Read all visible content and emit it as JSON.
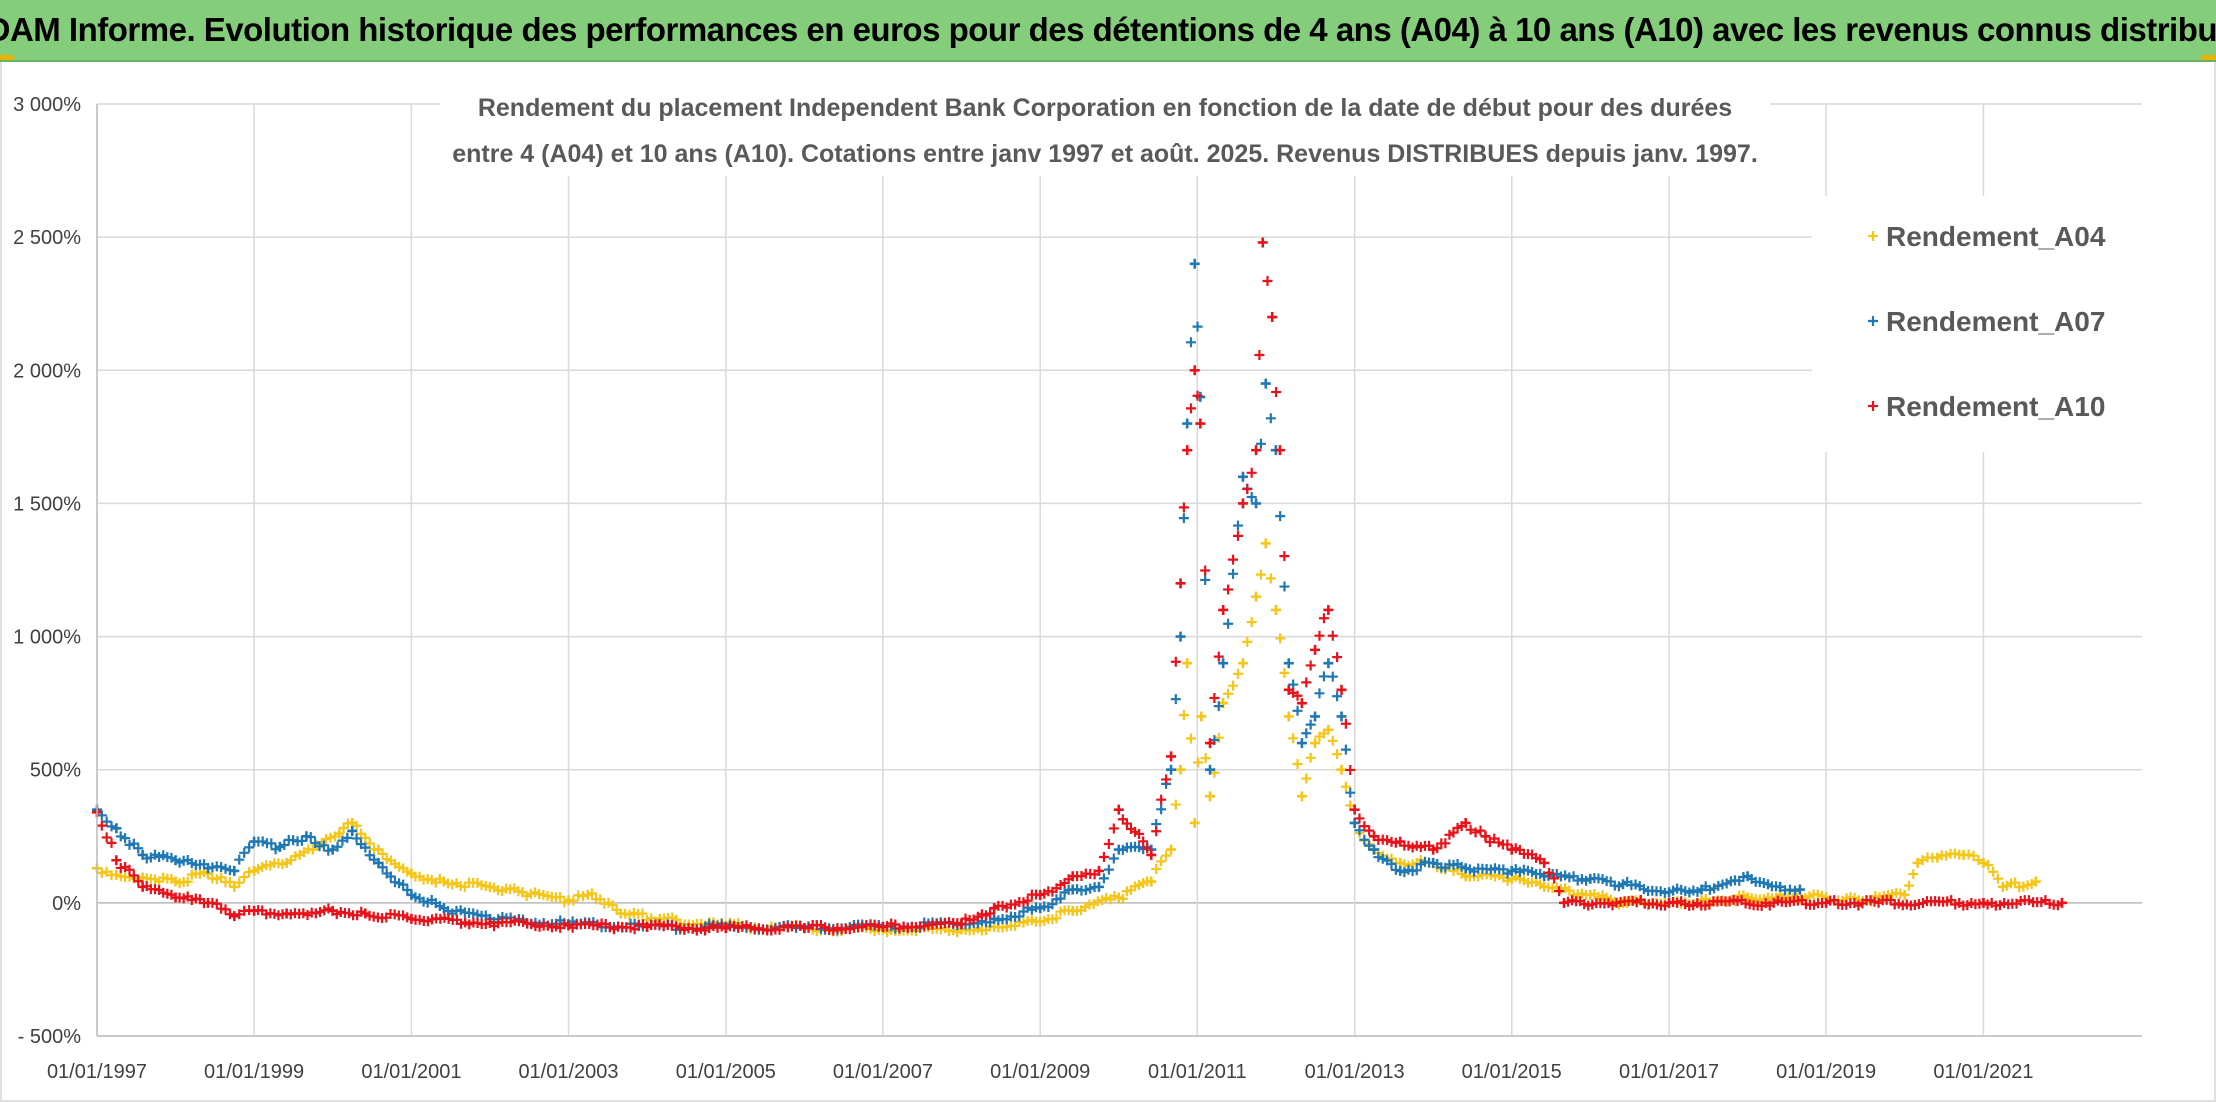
{
  "banner": {
    "title": "ADAM Informe. Evolution historique des performances en euros pour des détentions de 4 ans (A04) à 10 ans (A10) avec les revenus connus distribués"
  },
  "chart_data": {
    "type": "scatter",
    "title_lines": [
      "Rendement du placement Independent Bank Corporation en fonction de la date de début pour des durées",
      "entre 4 (A04) et 10 ans (A10). Cotations entre janv 1997 et août. 2025. Revenus DISTRIBUES depuis janv. 1997."
    ],
    "xlabel": "",
    "ylabel": "",
    "x_unit": "date",
    "xlim": [
      "1997-01-01",
      "2022-01-01"
    ],
    "ylim": [
      -500,
      3000
    ],
    "y_ticks": [
      -500,
      0,
      500,
      1000,
      1500,
      2000,
      2500,
      3000
    ],
    "y_tick_labels": [
      "- 500%",
      "0%",
      "500%",
      "1 000%",
      "1 500%",
      "2 000%",
      "2 500%",
      "3 000%"
    ],
    "x_tick_labels": [
      "01/01/1997",
      "01/01/1999",
      "01/01/2001",
      "01/01/2003",
      "01/01/2005",
      "01/01/2007",
      "01/01/2009",
      "01/01/2011",
      "01/01/2013",
      "01/01/2015",
      "01/01/2017",
      "01/01/2019",
      "01/01/2021"
    ],
    "x_tick_dates": [
      "1997-01-01",
      "1999-01-01",
      "2001-01-01",
      "2003-01-01",
      "2005-01-01",
      "2007-01-01",
      "2009-01-01",
      "2011-01-01",
      "2013-01-01",
      "2015-01-01",
      "2017-01-01",
      "2019-01-01",
      "2021-01-01"
    ],
    "grid": true,
    "legend_position": "top-right",
    "marker": "+",
    "series": [
      {
        "name": "Rendement_A04",
        "color": "#f5c518",
        "points": [
          [
            "1997-01-01",
            130
          ],
          [
            "1997-04-01",
            105
          ],
          [
            "1997-08-01",
            95
          ],
          [
            "1998-01-01",
            80
          ],
          [
            "1998-06-01",
            110
          ],
          [
            "1998-10-01",
            60
          ],
          [
            "1999-01-01",
            120
          ],
          [
            "1999-06-01",
            150
          ],
          [
            "1999-10-01",
            200
          ],
          [
            "2000-02-01",
            260
          ],
          [
            "2000-04-01",
            300
          ],
          [
            "2000-08-01",
            200
          ],
          [
            "2001-01-01",
            110
          ],
          [
            "2001-06-01",
            80
          ],
          [
            "2002-01-01",
            60
          ],
          [
            "2002-06-01",
            40
          ],
          [
            "2003-01-01",
            10
          ],
          [
            "2003-04-01",
            30
          ],
          [
            "2003-09-01",
            -40
          ],
          [
            "2004-03-01",
            -60
          ],
          [
            "2005-01-01",
            -85
          ],
          [
            "2006-01-01",
            -95
          ],
          [
            "2007-01-01",
            -100
          ],
          [
            "2008-01-01",
            -100
          ],
          [
            "2008-06-01",
            -90
          ],
          [
            "2009-01-01",
            -70
          ],
          [
            "2009-06-01",
            -30
          ],
          [
            "2010-01-01",
            20
          ],
          [
            "2010-06-01",
            80
          ],
          [
            "2010-09-01",
            200
          ],
          [
            "2010-10-15",
            500
          ],
          [
            "2010-11-15",
            900
          ],
          [
            "2010-12-20",
            300
          ],
          [
            "2011-01-20",
            700
          ],
          [
            "2011-03-01",
            400
          ],
          [
            "2011-05-01",
            750
          ],
          [
            "2011-08-01",
            900
          ],
          [
            "2011-10-01",
            1150
          ],
          [
            "2011-11-15",
            1350
          ],
          [
            "2012-01-01",
            1100
          ],
          [
            "2012-03-01",
            700
          ],
          [
            "2012-05-01",
            400
          ],
          [
            "2012-07-01",
            600
          ],
          [
            "2012-09-01",
            650
          ],
          [
            "2012-11-01",
            500
          ],
          [
            "2013-01-01",
            300
          ],
          [
            "2013-04-01",
            200
          ],
          [
            "2013-08-01",
            150
          ],
          [
            "2014-01-01",
            150
          ],
          [
            "2014-06-01",
            100
          ],
          [
            "2015-01-01",
            90
          ],
          [
            "2015-06-01",
            60
          ],
          [
            "2016-01-01",
            30
          ],
          [
            "2016-06-01",
            0
          ],
          [
            "2017-01-01",
            0
          ],
          [
            "2017-06-01",
            10
          ],
          [
            "2018-01-01",
            20
          ],
          [
            "2018-06-01",
            30
          ],
          [
            "2019-01-01",
            20
          ],
          [
            "2019-06-01",
            10
          ],
          [
            "2020-01-01",
            30
          ],
          [
            "2020-03-01",
            150
          ],
          [
            "2020-06-01",
            170
          ],
          [
            "2020-10-01",
            180
          ],
          [
            "2021-01-01",
            150
          ],
          [
            "2021-04-01",
            60
          ],
          [
            "2021-09-01",
            80
          ]
        ]
      },
      {
        "name": "Rendement_A07",
        "color": "#1f78b4",
        "points": [
          [
            "1997-01-01",
            350
          ],
          [
            "1997-04-01",
            280
          ],
          [
            "1997-08-01",
            180
          ],
          [
            "1998-01-01",
            160
          ],
          [
            "1998-06-01",
            130
          ],
          [
            "1998-10-01",
            120
          ],
          [
            "1999-01-01",
            230
          ],
          [
            "1999-05-01",
            210
          ],
          [
            "1999-09-01",
            250
          ],
          [
            "2000-01-01",
            200
          ],
          [
            "2000-04-01",
            270
          ],
          [
            "2000-08-01",
            150
          ],
          [
            "2001-01-01",
            30
          ],
          [
            "2001-06-01",
            -20
          ],
          [
            "2002-01-01",
            -60
          ],
          [
            "2003-01-01",
            -80
          ],
          [
            "2004-01-01",
            -90
          ],
          [
            "2005-01-01",
            -90
          ],
          [
            "2006-01-01",
            -95
          ],
          [
            "2007-01-01",
            -90
          ],
          [
            "2008-01-01",
            -80
          ],
          [
            "2008-06-01",
            -60
          ],
          [
            "2009-01-01",
            -20
          ],
          [
            "2009-06-01",
            50
          ],
          [
            "2009-10-01",
            60
          ],
          [
            "2010-01-01",
            200
          ],
          [
            "2010-06-01",
            200
          ],
          [
            "2010-09-01",
            500
          ],
          [
            "2010-10-15",
            1000
          ],
          [
            "2010-11-15",
            1800
          ],
          [
            "2010-12-20",
            2400
          ],
          [
            "2011-01-15",
            1900
          ],
          [
            "2011-03-01",
            500
          ],
          [
            "2011-05-01",
            900
          ],
          [
            "2011-08-01",
            1600
          ],
          [
            "2011-10-01",
            1500
          ],
          [
            "2011-11-15",
            1950
          ],
          [
            "2012-01-01",
            1700
          ],
          [
            "2012-03-01",
            900
          ],
          [
            "2012-05-01",
            600
          ],
          [
            "2012-07-01",
            700
          ],
          [
            "2012-09-01",
            900
          ],
          [
            "2012-11-01",
            700
          ],
          [
            "2013-01-01",
            300
          ],
          [
            "2013-04-01",
            200
          ],
          [
            "2013-08-01",
            120
          ],
          [
            "2014-01-01",
            150
          ],
          [
            "2014-06-01",
            130
          ],
          [
            "2015-01-01",
            120
          ],
          [
            "2015-06-01",
            100
          ],
          [
            "2016-01-01",
            90
          ],
          [
            "2016-06-01",
            70
          ],
          [
            "2017-01-01",
            40
          ],
          [
            "2017-06-01",
            50
          ],
          [
            "2018-01-01",
            100
          ],
          [
            "2018-06-01",
            60
          ],
          [
            "2018-09-01",
            50
          ]
        ]
      },
      {
        "name": "Rendement_A10",
        "color": "#e8121a",
        "points": [
          [
            "1997-01-01",
            340
          ],
          [
            "1997-04-01",
            160
          ],
          [
            "1997-08-01",
            60
          ],
          [
            "1998-01-01",
            20
          ],
          [
            "1998-06-01",
            0
          ],
          [
            "1998-10-01",
            -50
          ],
          [
            "1999-01-01",
            -30
          ],
          [
            "1999-06-01",
            -40
          ],
          [
            "2000-01-01",
            -30
          ],
          [
            "2000-06-01",
            -40
          ],
          [
            "2001-01-01",
            -60
          ],
          [
            "2002-01-01",
            -75
          ],
          [
            "2003-01-01",
            -85
          ],
          [
            "2004-01-01",
            -90
          ],
          [
            "2005-01-01",
            -95
          ],
          [
            "2006-01-01",
            -95
          ],
          [
            "2007-01-01",
            -90
          ],
          [
            "2008-01-01",
            -80
          ],
          [
            "2008-06-01",
            -20
          ],
          [
            "2009-01-01",
            30
          ],
          [
            "2009-06-01",
            100
          ],
          [
            "2009-10-01",
            120
          ],
          [
            "2010-01-01",
            350
          ],
          [
            "2010-06-01",
            180
          ],
          [
            "2010-09-01",
            550
          ],
          [
            "2010-10-15",
            1200
          ],
          [
            "2010-11-15",
            1700
          ],
          [
            "2010-12-20",
            2000
          ],
          [
            "2011-01-15",
            1800
          ],
          [
            "2011-03-01",
            600
          ],
          [
            "2011-05-01",
            1100
          ],
          [
            "2011-08-01",
            1500
          ],
          [
            "2011-10-01",
            1700
          ],
          [
            "2011-11-01",
            2480
          ],
          [
            "2011-12-15",
            2200
          ],
          [
            "2012-01-20",
            1700
          ],
          [
            "2012-03-01",
            800
          ],
          [
            "2012-05-01",
            750
          ],
          [
            "2012-07-01",
            950
          ],
          [
            "2012-09-01",
            1100
          ],
          [
            "2012-11-01",
            800
          ],
          [
            "2013-01-01",
            350
          ],
          [
            "2013-04-01",
            250
          ],
          [
            "2013-08-01",
            230
          ],
          [
            "2014-01-01",
            200
          ],
          [
            "2014-06-01",
            300
          ],
          [
            "2014-09-01",
            250
          ],
          [
            "2015-01-01",
            200
          ],
          [
            "2015-06-01",
            150
          ],
          [
            "2015-09-01",
            0
          ],
          [
            "2017-01-01",
            0
          ],
          [
            "2019-01-01",
            0
          ],
          [
            "2021-01-01",
            0
          ],
          [
            "2022-01-01",
            0
          ]
        ]
      }
    ]
  }
}
